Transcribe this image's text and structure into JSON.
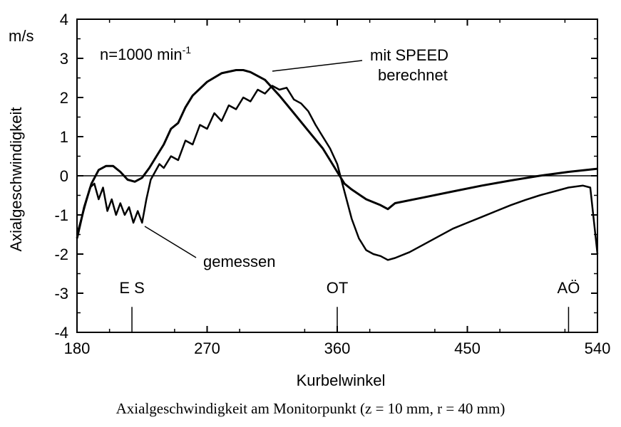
{
  "caption": "Axialgeschwindigkeit am Monitorpunkt (z = 10 mm, r = 40 mm)",
  "chart_data": {
    "type": "line",
    "title": "",
    "xlabel": "Kurbelwinkel",
    "ylabel": "Axialgeschwindigkeit",
    "yunit": "m/s",
    "xlim": [
      180,
      540
    ],
    "ylim": [
      -4,
      4
    ],
    "xticks": [
      180,
      270,
      360,
      450,
      540
    ],
    "yticks": [
      4,
      3,
      2,
      1,
      0,
      -1,
      -2,
      -3,
      -4
    ],
    "grid": false,
    "annotations": {
      "speed": "n=1000 min",
      "speed_exp": "-1",
      "computed_line1": "mit SPEED",
      "computed_line2": "berechnet",
      "measured": "gemessen"
    },
    "markers": [
      {
        "label": "E S",
        "x": 218
      },
      {
        "label": "OT",
        "x": 360
      },
      {
        "label": "AÖ",
        "x": 520
      }
    ],
    "series": [
      {
        "name": "mit SPEED berechnet",
        "x": [
          180,
          185,
          190,
          195,
          200,
          205,
          210,
          215,
          220,
          225,
          230,
          235,
          240,
          245,
          250,
          255,
          260,
          270,
          280,
          290,
          295,
          300,
          310,
          320,
          330,
          340,
          350,
          355,
          360,
          365,
          370,
          380,
          390,
          395,
          400,
          420,
          440,
          460,
          480,
          500,
          520,
          540
        ],
        "y": [
          -1.6,
          -0.8,
          -0.2,
          0.15,
          0.25,
          0.25,
          0.1,
          -0.1,
          -0.15,
          -0.05,
          0.2,
          0.5,
          0.8,
          1.2,
          1.35,
          1.75,
          2.05,
          2.4,
          2.62,
          2.7,
          2.7,
          2.65,
          2.45,
          2.05,
          1.6,
          1.15,
          0.7,
          0.4,
          0.1,
          -0.2,
          -0.35,
          -0.6,
          -0.75,
          -0.85,
          -0.7,
          -0.55,
          -0.4,
          -0.25,
          -0.12,
          0.0,
          0.1,
          0.18
        ]
      },
      {
        "name": "gemessen",
        "x": [
          180,
          183,
          186,
          189,
          192,
          195,
          198,
          201,
          204,
          207,
          210,
          213,
          216,
          219,
          222,
          225,
          228,
          231,
          234,
          237,
          240,
          245,
          250,
          255,
          260,
          265,
          270,
          275,
          280,
          285,
          290,
          295,
          300,
          305,
          310,
          315,
          320,
          325,
          330,
          335,
          340,
          345,
          350,
          355,
          360,
          365,
          370,
          375,
          380,
          385,
          390,
          395,
          400,
          410,
          420,
          430,
          440,
          450,
          460,
          470,
          480,
          490,
          500,
          510,
          520,
          530,
          535,
          540
        ],
        "y": [
          -1.5,
          -1.1,
          -0.7,
          -0.3,
          -0.2,
          -0.6,
          -0.3,
          -0.9,
          -0.6,
          -1.0,
          -0.7,
          -1.0,
          -0.8,
          -1.2,
          -0.9,
          -1.2,
          -0.6,
          -0.1,
          0.1,
          0.3,
          0.2,
          0.5,
          0.4,
          0.9,
          0.8,
          1.3,
          1.2,
          1.6,
          1.4,
          1.8,
          1.7,
          2.0,
          1.9,
          2.2,
          2.1,
          2.3,
          2.2,
          2.25,
          1.95,
          1.85,
          1.65,
          1.3,
          1.0,
          0.7,
          0.3,
          -0.4,
          -1.1,
          -1.6,
          -1.9,
          -2.0,
          -2.05,
          -2.15,
          -2.1,
          -1.95,
          -1.75,
          -1.55,
          -1.35,
          -1.2,
          -1.05,
          -0.9,
          -0.75,
          -0.62,
          -0.5,
          -0.4,
          -0.3,
          -0.25,
          -0.3,
          -2.0
        ]
      }
    ]
  }
}
